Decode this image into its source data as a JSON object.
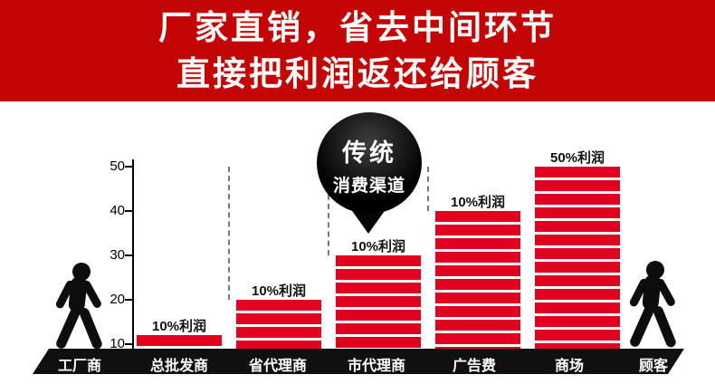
{
  "banner": {
    "line1": "厂家直销，省去中间环节",
    "line2": "直接把利润返还给顾客"
  },
  "balloon": {
    "line1": "传统",
    "line2": "消费渠道"
  },
  "colors": {
    "banner_bg": "#c40505",
    "bar_red": "#e2001f",
    "axis_black": "#101010",
    "text_white": "#ffffff"
  },
  "chart_data": {
    "type": "bar",
    "title": "传统消费渠道",
    "categories": [
      "总批发商",
      "省代理商",
      "市代理商",
      "广告费",
      "商场"
    ],
    "values": [
      12,
      20,
      30,
      40,
      50
    ],
    "bar_labels": [
      "10%利润",
      "10%利润",
      "10%利润",
      "10%利润",
      "50%利润"
    ],
    "yticks": [
      10,
      20,
      30,
      40,
      50
    ],
    "ylim": [
      0,
      50
    ],
    "xlabel": "",
    "ylabel": "",
    "legend": "none",
    "grid": "dashed-vertical-guides"
  },
  "bottom_axis": {
    "items": [
      "工厂商",
      "总批发商",
      "省代理商",
      "市代理商",
      "广告费",
      "商场",
      "顾客"
    ]
  }
}
